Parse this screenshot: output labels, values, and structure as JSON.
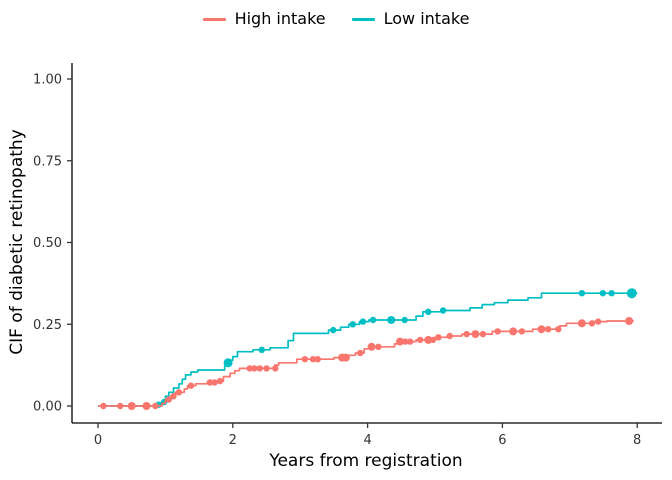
{
  "chart_data": {
    "type": "line",
    "subtype": "step-cumulative-incidence",
    "title": "",
    "xlabel": "Years from registration",
    "ylabel": "CIF of diabetic retinopathy",
    "xlim": [
      0,
      8
    ],
    "ylim": [
      0,
      1
    ],
    "xticks": [
      0,
      2,
      4,
      6,
      8
    ],
    "xtick_labels": [
      "0",
      "2",
      "4",
      "6",
      "8"
    ],
    "yticks": [
      0,
      0.25,
      0.5,
      0.75,
      1.0
    ],
    "ytick_labels": [
      "0.00",
      "0.25",
      "0.50",
      "0.75",
      "1.00"
    ],
    "grid": false,
    "legend_position": "top",
    "axis_color": "#000000",
    "tick_label_color": "#333333",
    "series": [
      {
        "name": "High intake",
        "color": "#F8766D",
        "points": [
          [
            0,
            0
          ],
          [
            0.95,
            0
          ],
          [
            0.95,
            0.008
          ],
          [
            1.0,
            0.008
          ],
          [
            1.0,
            0.02
          ],
          [
            1.08,
            0.02
          ],
          [
            1.08,
            0.03
          ],
          [
            1.15,
            0.03
          ],
          [
            1.15,
            0.042
          ],
          [
            1.28,
            0.042
          ],
          [
            1.28,
            0.052
          ],
          [
            1.33,
            0.052
          ],
          [
            1.33,
            0.062
          ],
          [
            1.45,
            0.062
          ],
          [
            1.45,
            0.068
          ],
          [
            1.62,
            0.068
          ],
          [
            1.62,
            0.072
          ],
          [
            1.79,
            0.072
          ],
          [
            1.79,
            0.076
          ],
          [
            1.86,
            0.076
          ],
          [
            1.86,
            0.09
          ],
          [
            1.96,
            0.09
          ],
          [
            1.96,
            0.1
          ],
          [
            2.03,
            0.1
          ],
          [
            2.03,
            0.108
          ],
          [
            2.1,
            0.108
          ],
          [
            2.1,
            0.115
          ],
          [
            2.62,
            0.115
          ],
          [
            2.62,
            0.125
          ],
          [
            2.68,
            0.125
          ],
          [
            2.68,
            0.132
          ],
          [
            2.95,
            0.132
          ],
          [
            2.95,
            0.143
          ],
          [
            3.5,
            0.143
          ],
          [
            3.5,
            0.148
          ],
          [
            3.72,
            0.148
          ],
          [
            3.72,
            0.155
          ],
          [
            3.82,
            0.155
          ],
          [
            3.82,
            0.162
          ],
          [
            3.95,
            0.162
          ],
          [
            3.95,
            0.175
          ],
          [
            4.02,
            0.175
          ],
          [
            4.02,
            0.181
          ],
          [
            4.4,
            0.181
          ],
          [
            4.4,
            0.19
          ],
          [
            4.45,
            0.19
          ],
          [
            4.45,
            0.197
          ],
          [
            4.72,
            0.197
          ],
          [
            4.72,
            0.202
          ],
          [
            5.0,
            0.202
          ],
          [
            5.0,
            0.21
          ],
          [
            5.18,
            0.21
          ],
          [
            5.18,
            0.214
          ],
          [
            5.4,
            0.214
          ],
          [
            5.4,
            0.22
          ],
          [
            5.85,
            0.22
          ],
          [
            5.85,
            0.228
          ],
          [
            6.45,
            0.228
          ],
          [
            6.45,
            0.235
          ],
          [
            6.85,
            0.235
          ],
          [
            6.85,
            0.245
          ],
          [
            6.95,
            0.245
          ],
          [
            6.95,
            0.253
          ],
          [
            7.35,
            0.253
          ],
          [
            7.35,
            0.258
          ],
          [
            7.55,
            0.258
          ],
          [
            7.55,
            0.26
          ],
          [
            7.95,
            0.26
          ]
        ],
        "markers": [
          [
            0.08,
            0
          ],
          [
            0.33,
            0
          ],
          [
            0.5,
            0,
            4
          ],
          [
            0.72,
            0,
            4
          ],
          [
            0.85,
            0
          ],
          [
            1.05,
            0.02
          ],
          [
            1.12,
            0.03
          ],
          [
            1.2,
            0.042
          ],
          [
            1.38,
            0.062
          ],
          [
            1.66,
            0.072
          ],
          [
            1.73,
            0.072
          ],
          [
            1.81,
            0.076
          ],
          [
            2.25,
            0.115
          ],
          [
            2.32,
            0.115
          ],
          [
            2.4,
            0.115
          ],
          [
            2.5,
            0.115
          ],
          [
            2.63,
            0.115
          ],
          [
            3.07,
            0.143
          ],
          [
            3.19,
            0.143
          ],
          [
            3.26,
            0.143
          ],
          [
            3.62,
            0.148,
            4
          ],
          [
            3.68,
            0.148,
            4
          ],
          [
            3.89,
            0.162
          ],
          [
            4.06,
            0.181,
            4
          ],
          [
            4.16,
            0.181
          ],
          [
            4.48,
            0.197,
            4
          ],
          [
            4.56,
            0.197
          ],
          [
            4.63,
            0.197
          ],
          [
            4.78,
            0.202
          ],
          [
            4.9,
            0.202,
            4
          ],
          [
            4.97,
            0.202
          ],
          [
            5.05,
            0.21
          ],
          [
            5.22,
            0.214
          ],
          [
            5.47,
            0.22
          ],
          [
            5.6,
            0.22,
            4
          ],
          [
            5.71,
            0.22
          ],
          [
            5.93,
            0.228
          ],
          [
            6.16,
            0.228,
            4
          ],
          [
            6.29,
            0.228
          ],
          [
            6.58,
            0.235,
            4
          ],
          [
            6.68,
            0.235
          ],
          [
            6.83,
            0.235
          ],
          [
            7.18,
            0.253,
            4
          ],
          [
            7.33,
            0.253
          ],
          [
            7.42,
            0.258
          ],
          [
            7.88,
            0.26,
            4
          ]
        ]
      },
      {
        "name": "Low intake",
        "color": "#00BFC4",
        "points": [
          [
            0,
            0
          ],
          [
            0.88,
            0
          ],
          [
            0.88,
            0.005
          ],
          [
            0.95,
            0.005
          ],
          [
            0.95,
            0.012
          ],
          [
            1.0,
            0.012
          ],
          [
            1.0,
            0.03
          ],
          [
            1.05,
            0.03
          ],
          [
            1.05,
            0.042
          ],
          [
            1.12,
            0.042
          ],
          [
            1.12,
            0.055
          ],
          [
            1.2,
            0.055
          ],
          [
            1.2,
            0.068
          ],
          [
            1.25,
            0.068
          ],
          [
            1.25,
            0.082
          ],
          [
            1.3,
            0.082
          ],
          [
            1.3,
            0.095
          ],
          [
            1.38,
            0.095
          ],
          [
            1.38,
            0.104
          ],
          [
            1.48,
            0.104
          ],
          [
            1.48,
            0.11
          ],
          [
            1.88,
            0.11
          ],
          [
            1.88,
            0.125
          ],
          [
            1.93,
            0.125
          ],
          [
            1.93,
            0.14
          ],
          [
            2.0,
            0.14
          ],
          [
            2.0,
            0.151
          ],
          [
            2.07,
            0.151
          ],
          [
            2.07,
            0.166
          ],
          [
            2.3,
            0.166
          ],
          [
            2.3,
            0.172
          ],
          [
            2.55,
            0.172
          ],
          [
            2.55,
            0.178
          ],
          [
            2.82,
            0.178
          ],
          [
            2.82,
            0.2
          ],
          [
            2.9,
            0.2
          ],
          [
            2.9,
            0.222
          ],
          [
            3.42,
            0.222
          ],
          [
            3.42,
            0.232
          ],
          [
            3.6,
            0.232
          ],
          [
            3.6,
            0.241
          ],
          [
            3.72,
            0.241
          ],
          [
            3.72,
            0.25
          ],
          [
            3.88,
            0.25
          ],
          [
            3.88,
            0.258
          ],
          [
            4.02,
            0.258
          ],
          [
            4.02,
            0.263
          ],
          [
            4.72,
            0.263
          ],
          [
            4.72,
            0.275
          ],
          [
            4.82,
            0.275
          ],
          [
            4.82,
            0.288
          ],
          [
            5.1,
            0.288
          ],
          [
            5.1,
            0.292
          ],
          [
            5.52,
            0.292
          ],
          [
            5.52,
            0.3
          ],
          [
            5.7,
            0.3
          ],
          [
            5.7,
            0.31
          ],
          [
            5.88,
            0.31
          ],
          [
            5.88,
            0.316
          ],
          [
            6.08,
            0.316
          ],
          [
            6.08,
            0.324
          ],
          [
            6.38,
            0.324
          ],
          [
            6.38,
            0.331
          ],
          [
            6.58,
            0.331
          ],
          [
            6.58,
            0.345
          ],
          [
            8.0,
            0.345
          ]
        ],
        "markers": [
          [
            0.72,
            0.001
          ],
          [
            0.9,
            0.004
          ],
          [
            0.98,
            0.012
          ],
          [
            1.93,
            0.132,
            4.5
          ],
          [
            2.43,
            0.172
          ],
          [
            3.49,
            0.232
          ],
          [
            3.78,
            0.25
          ],
          [
            3.93,
            0.258
          ],
          [
            4.08,
            0.263
          ],
          [
            4.35,
            0.263,
            4
          ],
          [
            4.55,
            0.263
          ],
          [
            4.9,
            0.288
          ],
          [
            5.12,
            0.292
          ],
          [
            7.18,
            0.345
          ],
          [
            7.49,
            0.345
          ],
          [
            7.62,
            0.345
          ],
          [
            7.92,
            0.345,
            5
          ]
        ]
      }
    ]
  }
}
